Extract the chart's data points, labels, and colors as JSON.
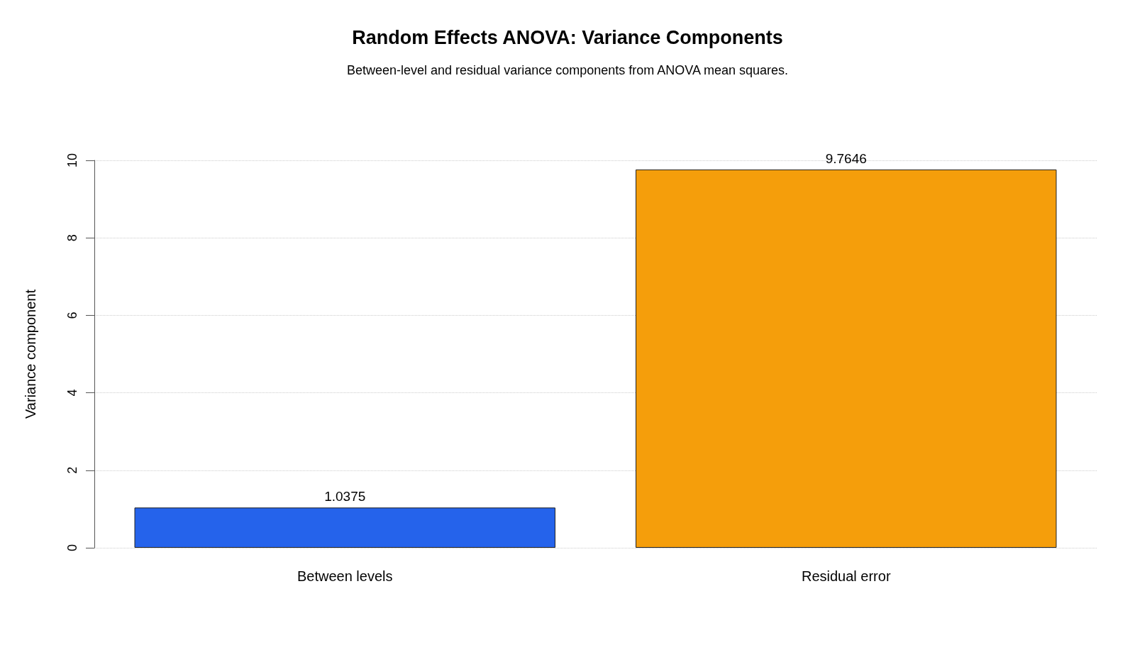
{
  "chart_data": {
    "type": "bar",
    "title": "Random Effects ANOVA: Variance Components",
    "subtitle": "Between-level and residual variance components from ANOVA mean squares.",
    "ylabel": "Variance component",
    "categories": [
      "Between levels",
      "Residual error"
    ],
    "values": [
      1.0375,
      9.7646
    ],
    "colors": [
      "#2563eb",
      "#f59e0b"
    ],
    "ylim": [
      0,
      10
    ],
    "yticks": [
      0,
      2,
      4,
      6,
      8,
      10
    ],
    "grid": "y",
    "data_labels": true
  }
}
